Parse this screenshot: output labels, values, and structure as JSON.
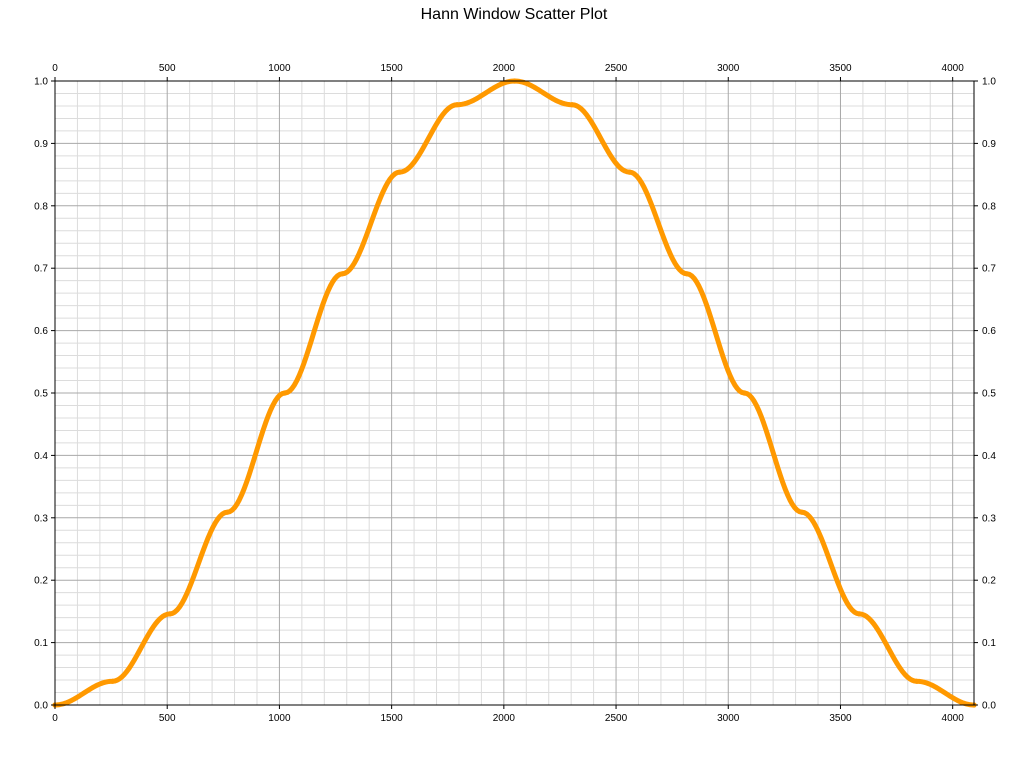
{
  "chart_data": {
    "type": "scatter",
    "title": "Hann Window Scatter Plot",
    "xlabel": "",
    "ylabel": "",
    "xlim": [
      0,
      4095
    ],
    "ylim": [
      0,
      1.0
    ],
    "x_ticks": [
      0,
      500,
      1000,
      1500,
      2000,
      2500,
      3000,
      3500,
      4000
    ],
    "x_tick_labels": [
      "0",
      "500",
      "1000",
      "1500",
      "2000",
      "2500",
      "3000",
      "3500",
      "4000"
    ],
    "y_ticks": [
      0.0,
      0.1,
      0.2,
      0.3,
      0.4,
      0.5,
      0.6,
      0.7,
      0.8,
      0.9,
      1.0
    ],
    "y_tick_labels": [
      "0.0",
      "0.1",
      "0.2",
      "0.3",
      "0.4",
      "0.5",
      "0.6",
      "0.7",
      "0.8",
      "0.9",
      "1.0"
    ],
    "grid": true,
    "minor_grid": true,
    "legend": "none",
    "series": [
      {
        "color": "#ff9900",
        "x": [
          0,
          256,
          512,
          768,
          1024,
          1280,
          1536,
          1792,
          2048,
          2304,
          2560,
          2816,
          3072,
          3328,
          3584,
          3840,
          4095
        ],
        "y": [
          0.0,
          0.038,
          0.146,
          0.309,
          0.5,
          0.691,
          0.854,
          0.962,
          1.0,
          0.962,
          0.854,
          0.691,
          0.5,
          0.309,
          0.146,
          0.038,
          0.0
        ]
      }
    ]
  }
}
